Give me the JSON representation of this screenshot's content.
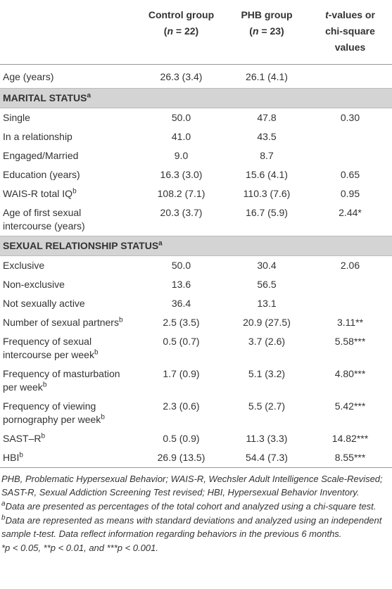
{
  "header": [
    {
      "lines": [
        [
          {
            "text": "Control group"
          }
        ],
        [
          {
            "text": "("
          },
          {
            "text": "n",
            "style": "italic"
          },
          {
            "text": " = 22)"
          }
        ]
      ]
    },
    {
      "lines": [
        [
          {
            "text": "PHB group"
          }
        ],
        [
          {
            "text": "("
          },
          {
            "text": "n",
            "style": "italic"
          },
          {
            "text": " = 23)"
          }
        ]
      ]
    },
    {
      "lines": [
        [
          {
            "text": "t",
            "style": "italic"
          },
          {
            "text": "-values or"
          }
        ],
        [
          {
            "text": "chi-square values"
          }
        ]
      ]
    }
  ],
  "rows": [
    {
      "label": [
        "Age (years)"
      ],
      "values": [
        "26.3 (3.4)",
        "26.1 (4.1)",
        ""
      ]
    },
    {
      "section": "MARITAL STATUS",
      "sup": "a"
    },
    {
      "label": [
        "Single"
      ],
      "values": [
        "50.0",
        "47.8",
        "0.30"
      ]
    },
    {
      "label": [
        "In a relationship"
      ],
      "values": [
        "41.0",
        "43.5",
        ""
      ]
    },
    {
      "label": [
        "Engaged/Married"
      ],
      "values": [
        "9.0",
        "8.7",
        ""
      ]
    },
    {
      "label": [
        "Education (years)"
      ],
      "values": [
        "16.3 (3.0)",
        "15.6 (4.1)",
        "0.65"
      ]
    },
    {
      "label": [
        "WAIS-R total IQ"
      ],
      "sup": "b",
      "values": [
        "108.2 (7.1)",
        "110.3 (7.6)",
        "0.95"
      ]
    },
    {
      "label": [
        "Age of first sexual",
        "intercourse (years)"
      ],
      "values": [
        "20.3 (3.7)",
        "16.7 (5.9)",
        "2.44*"
      ]
    },
    {
      "section": "SEXUAL RELATIONSHIP STATUS",
      "sup": "a"
    },
    {
      "label": [
        "Exclusive"
      ],
      "values": [
        "50.0",
        "30.4",
        "2.06"
      ]
    },
    {
      "label": [
        "Non-exclusive"
      ],
      "values": [
        "13.6",
        "56.5",
        ""
      ]
    },
    {
      "label": [
        "Not sexually active"
      ],
      "values": [
        "36.4",
        "13.1",
        ""
      ]
    },
    {
      "label": [
        "Number of sexual partners"
      ],
      "sup": "b",
      "values": [
        "2.5 (3.5)",
        "20.9 (27.5)",
        "3.11**"
      ]
    },
    {
      "label": [
        "Frequency of sexual",
        "intercourse per week"
      ],
      "sup": "b",
      "values": [
        "0.5 (0.7)",
        "3.7 (2.6)",
        "5.58***"
      ]
    },
    {
      "label": [
        "Frequency of masturbation",
        "per week"
      ],
      "sup": "b",
      "values": [
        "1.7 (0.9)",
        "5.1 (3.2)",
        "4.80***"
      ]
    },
    {
      "label": [
        "Frequency of viewing",
        "pornography per week"
      ],
      "sup": "b",
      "values": [
        "2.3 (0.6)",
        "5.5 (2.7)",
        "5.42***"
      ]
    },
    {
      "label": [
        "SAST–R"
      ],
      "sup": "b",
      "values": [
        "0.5 (0.9)",
        "11.3 (3.3)",
        "14.82***"
      ]
    },
    {
      "label": [
        "HBI"
      ],
      "sup": "b",
      "values": [
        "26.9 (13.5)",
        "54.4 (7.3)",
        "8.55***"
      ]
    }
  ],
  "footnotes": [
    {
      "text": "PHB, Problematic Hypersexual Behavior; WAIS-R, Wechsler Adult Intelligence Scale-Revised; SAST-R, Sexual Addiction Screening Test revised; HBI, Hypersexual Behavior Inventory."
    },
    {
      "sup": "a",
      "text": "Data are presented as percentages of the total cohort and analyzed using a chi-square test."
    },
    {
      "sup": "b",
      "text": "Data are represented as means with standard deviations and analyzed using an independent sample t-test. Data reflect information regarding behaviors in the previous 6 months."
    },
    {
      "text": "*p < 0.05, **p < 0.01, and ***p < 0.001."
    }
  ]
}
